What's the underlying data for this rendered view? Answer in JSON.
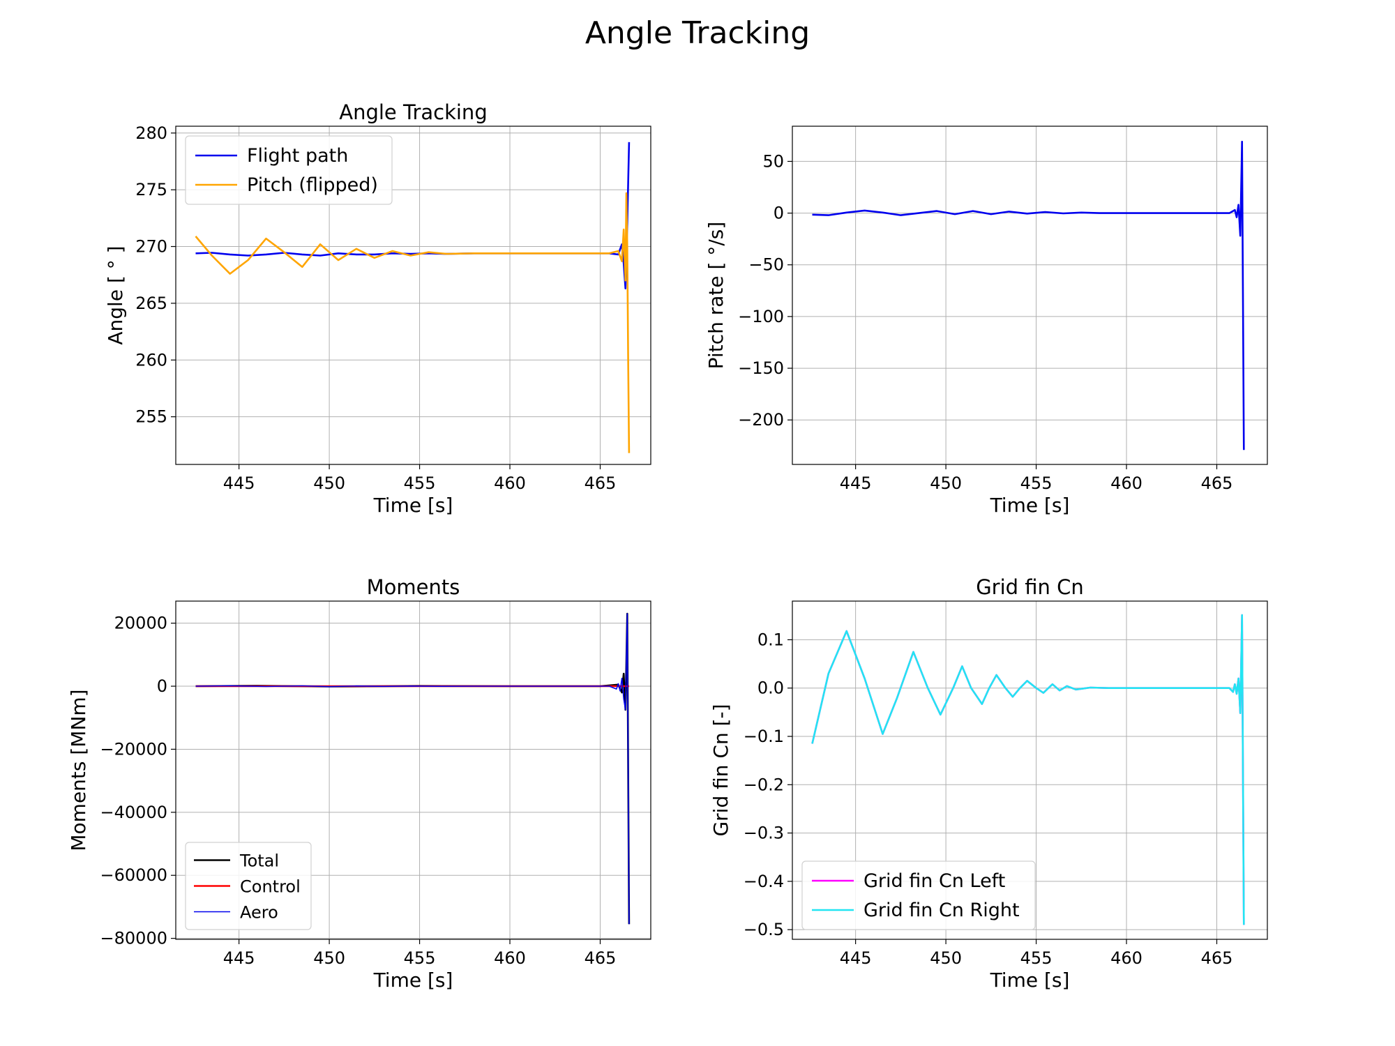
{
  "figure": {
    "suptitle": "Angle Tracking"
  },
  "chart_data": [
    {
      "type": "line",
      "title": "Angle Tracking",
      "xlabel": "Time [s]",
      "ylabel": "Angle [$^\\circ$]",
      "ylabel_display": "Angle [ ° ]",
      "xlim": [
        441.5,
        467.8
      ],
      "ylim": [
        250.8,
        280.6
      ],
      "xticks": [
        445,
        450,
        455,
        460,
        465
      ],
      "xtick_labels": [
        "445",
        "450",
        "455",
        "460",
        "465"
      ],
      "yticks": [
        255,
        260,
        265,
        270,
        275,
        280
      ],
      "ytick_labels": [
        "255",
        "260",
        "265",
        "270",
        "275",
        "280"
      ],
      "grid": true,
      "legend": {
        "placement": "upper-left",
        "entries": [
          "Flight path",
          "Pitch (flipped)"
        ]
      },
      "series": [
        {
          "name": "Flight path",
          "color": "#0000ee",
          "x": [
            442.6,
            443.5,
            444.5,
            445.5,
            446.5,
            447.5,
            448.5,
            449.5,
            450.5,
            451.5,
            452.5,
            453.5,
            454.5,
            455.5,
            456.5,
            458,
            460,
            462,
            464,
            465.5,
            466.0,
            466.2,
            466.3,
            466.4,
            466.5,
            466.6
          ],
          "values": [
            269.4,
            269.45,
            269.3,
            269.2,
            269.3,
            269.45,
            269.3,
            269.2,
            269.4,
            269.3,
            269.3,
            269.4,
            269.35,
            269.4,
            269.35,
            269.4,
            269.4,
            269.4,
            269.4,
            269.4,
            269.3,
            270.2,
            268.5,
            266.3,
            272.0,
            279.2
          ]
        },
        {
          "name": "Pitch (flipped)",
          "color": "#ffa500",
          "x": [
            442.6,
            443.5,
            444.5,
            445.5,
            446.5,
            447.5,
            448.5,
            449.5,
            450.5,
            451.5,
            452.5,
            453.5,
            454.5,
            455.5,
            456.5,
            458,
            460,
            462,
            464,
            465.5,
            466.0,
            466.2,
            466.3,
            466.4,
            466.45,
            466.5,
            466.55,
            466.6
          ],
          "values": [
            270.9,
            269.2,
            267.6,
            268.8,
            270.7,
            269.5,
            268.2,
            270.2,
            268.8,
            269.8,
            269.0,
            269.6,
            269.2,
            269.5,
            269.35,
            269.4,
            269.4,
            269.4,
            269.4,
            269.4,
            269.6,
            268.7,
            271.5,
            267.0,
            274.7,
            270.0,
            260.0,
            251.8
          ]
        }
      ]
    },
    {
      "type": "line",
      "title": "",
      "xlabel": "Time [s]",
      "ylabel": "Pitch rate [$^\\circ$/s]",
      "ylabel_display": "Pitch rate [ °/s]",
      "xlim": [
        441.5,
        467.8
      ],
      "ylim": [
        -243,
        84
      ],
      "xticks": [
        445,
        450,
        455,
        460,
        465
      ],
      "xtick_labels": [
        "445",
        "450",
        "455",
        "460",
        "465"
      ],
      "yticks": [
        -200,
        -150,
        -100,
        -50,
        0,
        50
      ],
      "ytick_labels": [
        "−200",
        "−150",
        "−100",
        "−50",
        "0",
        "50"
      ],
      "grid": true,
      "series": [
        {
          "color": "#0000ee",
          "x": [
            442.6,
            443.5,
            444.5,
            445.5,
            446.5,
            447.5,
            448.5,
            449.5,
            450.5,
            451.5,
            452.5,
            453.5,
            454.5,
            455.5,
            456.5,
            457.5,
            458.5,
            460,
            462,
            464,
            465.7,
            466.0,
            466.1,
            466.2,
            466.3,
            466.4,
            466.5
          ],
          "values": [
            -1.5,
            -2.0,
            0.5,
            2.5,
            0.5,
            -2.0,
            0.0,
            2.0,
            -1.0,
            2.0,
            -1.0,
            1.5,
            -0.5,
            1.0,
            -0.3,
            0.5,
            0.0,
            0.0,
            0.0,
            0.0,
            0.0,
            3.0,
            -4.0,
            8.0,
            -22.0,
            69.0,
            -229.0
          ]
        }
      ]
    },
    {
      "type": "line",
      "title": "Moments",
      "xlabel": "Time [s]",
      "ylabel": "Moments [MNm]",
      "xlim": [
        441.5,
        467.8
      ],
      "ylim": [
        -80300,
        27000
      ],
      "xticks": [
        445,
        450,
        455,
        460,
        465
      ],
      "xtick_labels": [
        "445",
        "450",
        "455",
        "460",
        "465"
      ],
      "yticks": [
        -80000,
        -60000,
        -40000,
        -20000,
        0,
        20000
      ],
      "ytick_labels": [
        "−80000",
        "−60000",
        "−40000",
        "−20000",
        "0",
        "20000"
      ],
      "grid": true,
      "legend": {
        "placement": "lower-left",
        "entries": [
          "Total",
          "Control",
          "Aero"
        ]
      },
      "series": [
        {
          "name": "Total",
          "color": "#000000",
          "x": [
            442.6,
            446,
            450,
            455,
            460,
            465,
            466.0,
            466.2,
            466.3,
            466.4,
            466.5,
            466.6
          ],
          "values": [
            0,
            150,
            -100,
            80,
            0,
            0,
            500,
            -2000,
            4000,
            -7500,
            23000,
            -75500
          ]
        },
        {
          "name": "Control",
          "color": "#ff0000",
          "x": [
            442.6,
            450,
            460,
            466.0,
            466.6
          ],
          "values": [
            0,
            0,
            0,
            0,
            0
          ]
        },
        {
          "name": "Aero",
          "color": "#0000ee",
          "x": [
            442.6,
            444.5,
            446.5,
            448.5,
            450,
            451.5,
            453,
            454.5,
            456,
            458,
            460,
            462,
            464,
            465.5,
            465.9,
            466.0,
            466.1,
            466.2,
            466.3,
            466.4,
            466.5,
            466.6
          ],
          "values": [
            0,
            150,
            -100,
            120,
            -150,
            80,
            -60,
            50,
            -30,
            0,
            0,
            0,
            0,
            0,
            -900,
            800,
            -1500,
            2500,
            -4000,
            -7500,
            23000,
            -75500
          ]
        }
      ]
    },
    {
      "type": "line",
      "title": "Grid fin Cn",
      "xlabel": "Time [s]",
      "ylabel": "Grid fin Cn [-]",
      "xlim": [
        441.5,
        467.8
      ],
      "ylim": [
        -0.52,
        0.18
      ],
      "xticks": [
        445,
        450,
        455,
        460,
        465
      ],
      "xtick_labels": [
        "445",
        "450",
        "455",
        "460",
        "465"
      ],
      "yticks": [
        -0.5,
        -0.4,
        -0.3,
        -0.2,
        -0.1,
        0.0,
        0.1
      ],
      "ytick_labels": [
        "−0.5",
        "−0.4",
        "−0.3",
        "−0.2",
        "−0.1",
        "0.0",
        "0.1"
      ],
      "grid": true,
      "legend": {
        "placement": "lower-left",
        "entries": [
          "Grid fin Cn Left",
          "Grid fin Cn Right"
        ]
      },
      "series": [
        {
          "name": "Grid fin Cn Left",
          "color": "#ff00ff",
          "x": [
            442.6,
            443.5,
            444.5,
            445.5,
            446.5,
            447.3,
            448.2,
            449.0,
            449.7,
            450.4,
            450.9,
            451.4,
            452.0,
            452.4,
            452.8,
            453.3,
            453.7,
            454.1,
            454.5,
            455.0,
            455.4,
            455.9,
            456.3,
            456.7,
            457.2,
            458,
            459,
            460,
            462,
            464,
            465.7,
            465.9,
            466.0,
            466.1,
            466.2,
            466.3,
            466.4,
            466.5
          ],
          "values": [
            -0.115,
            0.03,
            0.118,
            0.02,
            -0.095,
            -0.02,
            0.075,
            0.0,
            -0.055,
            0.0,
            0.045,
            0.0,
            -0.033,
            0.0,
            0.027,
            0.0,
            -0.018,
            0.0,
            0.015,
            0.0,
            -0.01,
            0.008,
            -0.005,
            0.004,
            -0.003,
            0.001,
            0.0,
            0.0,
            0.0,
            0.0,
            0.0,
            -0.008,
            0.008,
            -0.012,
            0.02,
            -0.052,
            0.151,
            -0.49
          ]
        },
        {
          "name": "Grid fin Cn Right",
          "color": "#22e5f2",
          "x": [
            442.6,
            443.5,
            444.5,
            445.5,
            446.5,
            447.3,
            448.2,
            449.0,
            449.7,
            450.4,
            450.9,
            451.4,
            452.0,
            452.4,
            452.8,
            453.3,
            453.7,
            454.1,
            454.5,
            455.0,
            455.4,
            455.9,
            456.3,
            456.7,
            457.2,
            458,
            459,
            460,
            462,
            464,
            465.7,
            465.9,
            466.0,
            466.1,
            466.2,
            466.3,
            466.4,
            466.5
          ],
          "values": [
            -0.115,
            0.03,
            0.118,
            0.02,
            -0.095,
            -0.02,
            0.075,
            0.0,
            -0.055,
            0.0,
            0.045,
            0.0,
            -0.033,
            0.0,
            0.027,
            0.0,
            -0.018,
            0.0,
            0.015,
            0.0,
            -0.01,
            0.008,
            -0.005,
            0.004,
            -0.003,
            0.001,
            0.0,
            0.0,
            0.0,
            0.0,
            0.0,
            -0.008,
            0.008,
            -0.012,
            0.02,
            -0.052,
            0.151,
            -0.49
          ]
        }
      ]
    }
  ]
}
